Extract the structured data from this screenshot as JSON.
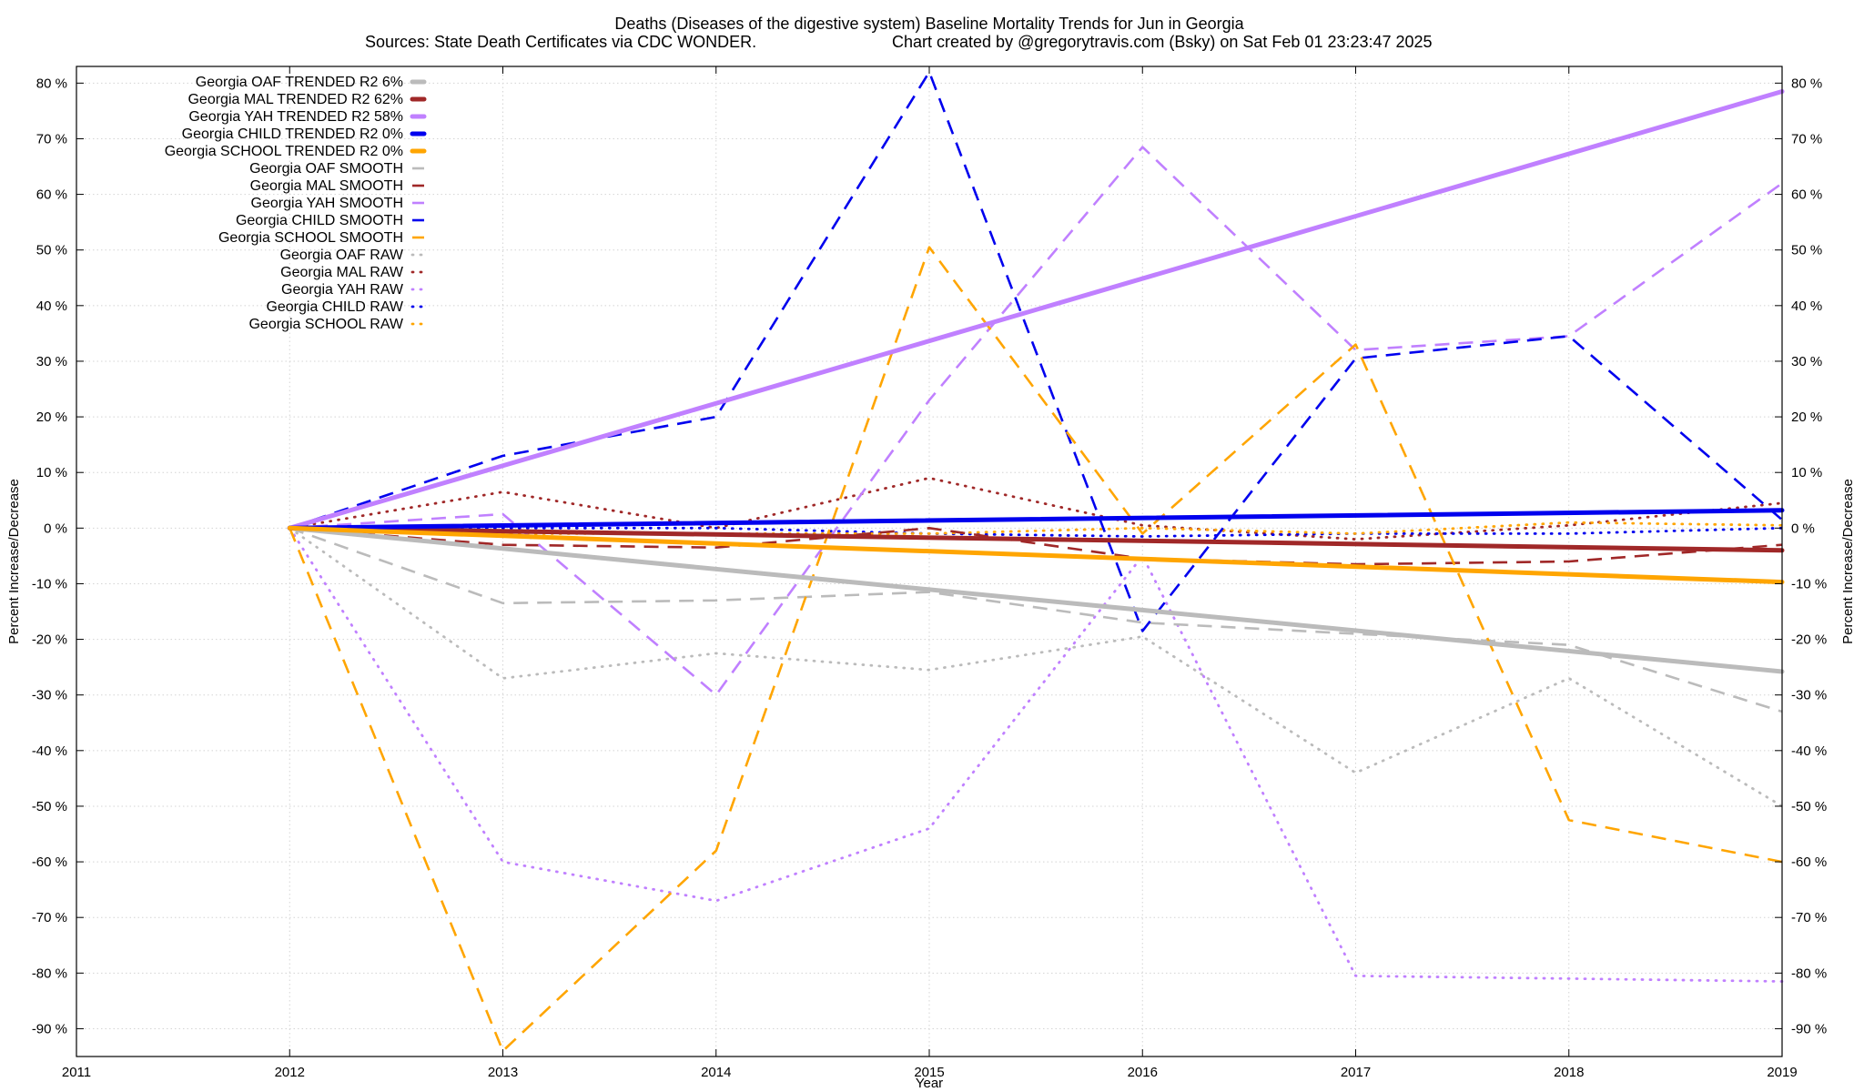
{
  "chart_data": {
    "type": "line",
    "title": "Deaths (Diseases of the digestive system)  Baseline Mortality Trends for Jun in Georgia",
    "subtitle_left": "Sources: State Death Certificates via CDC WONDER.",
    "subtitle_right": "Chart created by @gregorytravis.com (Bsky) on Sat Feb 01 23:23:47 2025",
    "xlabel": "Year",
    "ylabel_left": "Percent Increase/Decrease",
    "ylabel_right": "Percent Increase/Decrease",
    "xlim": [
      2011,
      2019
    ],
    "ylim": [
      -95,
      83
    ],
    "x_ticks": [
      "2011",
      "2012",
      "2013",
      "2014",
      "2015",
      "2016",
      "2017",
      "2018",
      "2019"
    ],
    "y_ticks": [
      "80 %",
      "70 %",
      "60 %",
      "50 %",
      "40 %",
      "30 %",
      "20 %",
      "10 %",
      "0 %",
      "-10 %",
      "-20 %",
      "-30 %",
      "-40 %",
      "-50 %",
      "-60 %",
      "-70 %",
      "-80 %",
      "-90 %"
    ],
    "y_tick_values": [
      80,
      70,
      60,
      50,
      40,
      30,
      20,
      10,
      0,
      -10,
      -20,
      -30,
      -40,
      -50,
      -60,
      -70,
      -80,
      -90
    ],
    "grid": true,
    "legend_position": "top-left",
    "series": [
      {
        "name": "Georgia OAF TRENDED R2   6%",
        "color": "#bbbbbb",
        "style": "trend",
        "x": [
          2012,
          2019
        ],
        "values": [
          0,
          -25.8
        ]
      },
      {
        "name": "Georgia MAL TRENDED R2  62%",
        "color": "#a02828",
        "style": "trend",
        "x": [
          2012,
          2019
        ],
        "values": [
          0,
          -4
        ]
      },
      {
        "name": "Georgia YAH TRENDED R2  58%",
        "color": "#c080ff",
        "style": "trend",
        "x": [
          2012,
          2019
        ],
        "values": [
          0,
          78.5
        ]
      },
      {
        "name": "Georgia CHILD TRENDED R2   0%",
        "color": "#0000ee",
        "style": "trend",
        "x": [
          2012,
          2019
        ],
        "values": [
          0,
          3.2
        ]
      },
      {
        "name": "Georgia SCHOOL TRENDED R2   0%",
        "color": "#ffa500",
        "style": "trend",
        "x": [
          2012,
          2019
        ],
        "values": [
          0,
          -9.7
        ]
      },
      {
        "name": "Georgia OAF SMOOTH",
        "color": "#bbbbbb",
        "style": "smooth",
        "x": [
          2012,
          2013,
          2014,
          2015,
          2016,
          2017,
          2018,
          2019
        ],
        "values": [
          0,
          -13.5,
          -13,
          -11.5,
          -17,
          -19,
          -21,
          -33
        ]
      },
      {
        "name": "Georgia MAL SMOOTH",
        "color": "#a02828",
        "style": "smooth",
        "x": [
          2012,
          2013,
          2014,
          2015,
          2016,
          2017,
          2018,
          2019
        ],
        "values": [
          0,
          -3,
          -3.5,
          0,
          -5.5,
          -6.5,
          -6,
          -3
        ]
      },
      {
        "name": "Georgia YAH SMOOTH",
        "color": "#c080ff",
        "style": "smooth",
        "x": [
          2012,
          2013,
          2014,
          2015,
          2016,
          2017,
          2018,
          2019
        ],
        "values": [
          0,
          2.5,
          -30,
          23,
          68.5,
          32,
          34.5,
          62
        ]
      },
      {
        "name": "Georgia CHILD SMOOTH",
        "color": "#0000ee",
        "style": "smooth",
        "x": [
          2012,
          2013,
          2014,
          2015,
          2016,
          2017,
          2018,
          2019
        ],
        "values": [
          0,
          13,
          20,
          82,
          -18.5,
          30.5,
          34.5,
          1.5
        ]
      },
      {
        "name": "Georgia SCHOOL SMOOTH",
        "color": "#ffa500",
        "style": "smooth",
        "x": [
          2012,
          2013,
          2014,
          2015,
          2016,
          2017,
          2018,
          2019
        ],
        "values": [
          0,
          -94,
          -58,
          50.5,
          -1,
          33,
          -52.5,
          -60
        ]
      },
      {
        "name": "Georgia OAF RAW",
        "color": "#bbbbbb",
        "style": "raw",
        "x": [
          2012,
          2013,
          2014,
          2015,
          2016,
          2017,
          2018,
          2019
        ],
        "values": [
          0,
          -27,
          -22.5,
          -25.5,
          -19.5,
          -44,
          -27,
          -50
        ]
      },
      {
        "name": "Georgia MAL RAW",
        "color": "#a02828",
        "style": "raw",
        "x": [
          2012,
          2013,
          2014,
          2015,
          2016,
          2017,
          2018,
          2019
        ],
        "values": [
          0,
          6.5,
          0,
          9,
          0.5,
          -2,
          0.5,
          4.5
        ]
      },
      {
        "name": "Georgia YAH RAW",
        "color": "#c080ff",
        "style": "raw",
        "x": [
          2012,
          2013,
          2014,
          2015,
          2016,
          2017,
          2018,
          2019
        ],
        "values": [
          0,
          -60,
          -67,
          -54,
          -5,
          -80.5,
          -81,
          -81.5
        ]
      },
      {
        "name": "Georgia CHILD RAW",
        "color": "#0000ee",
        "style": "raw",
        "x": [
          2012,
          2013,
          2014,
          2015,
          2016,
          2017,
          2018,
          2019
        ],
        "values": [
          0,
          0,
          0,
          -1,
          -1.5,
          -1,
          -1,
          0
        ]
      },
      {
        "name": "Georgia SCHOOL RAW",
        "color": "#ffa500",
        "style": "raw",
        "x": [
          2012,
          2013,
          2014,
          2015,
          2016,
          2017,
          2018,
          2019
        ],
        "values": [
          0,
          -1,
          -1,
          -1,
          0,
          -1,
          1,
          0.5
        ]
      }
    ]
  }
}
